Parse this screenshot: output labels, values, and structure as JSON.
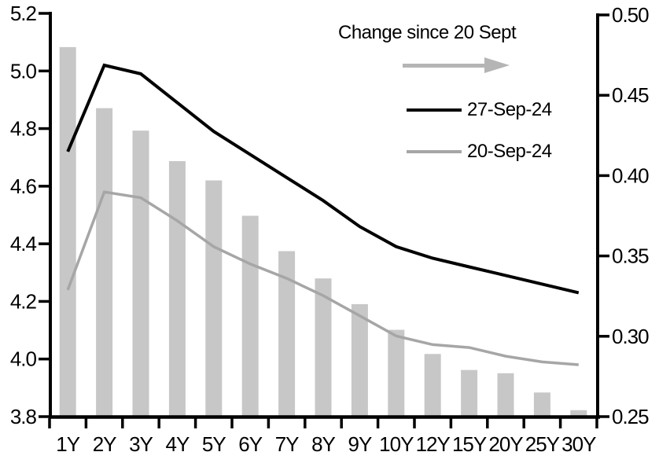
{
  "chart_data": {
    "type": "bar",
    "subtype": "combo-bar-line",
    "title": "",
    "categories": [
      "1Y",
      "2Y",
      "3Y",
      "4Y",
      "5Y",
      "6Y",
      "7Y",
      "8Y",
      "9Y",
      "10Y",
      "12Y",
      "15Y",
      "20Y",
      "25Y",
      "30Y"
    ],
    "series": [
      {
        "name": "Change since 20 Sept",
        "type": "bar",
        "axis": "right",
        "color": "#c7c7c7",
        "values": [
          0.48,
          0.442,
          0.428,
          0.409,
          0.397,
          0.375,
          0.353,
          0.336,
          0.32,
          0.304,
          0.289,
          0.279,
          0.277,
          0.265,
          0.254
        ]
      },
      {
        "name": "27-Sep-24",
        "type": "line",
        "axis": "left",
        "color": "#000000",
        "values": [
          4.72,
          5.02,
          4.99,
          4.89,
          4.79,
          4.71,
          4.63,
          4.55,
          4.46,
          4.39,
          4.35,
          4.32,
          4.29,
          4.26,
          4.23
        ]
      },
      {
        "name": "20-Sep-24",
        "type": "line",
        "axis": "left",
        "color": "#a6a6a6",
        "values": [
          4.24,
          4.58,
          4.56,
          4.48,
          4.39,
          4.33,
          4.28,
          4.22,
          4.15,
          4.08,
          4.05,
          4.04,
          4.01,
          3.99,
          3.98
        ]
      }
    ],
    "left_axis": {
      "min": 3.8,
      "max": 5.2,
      "step": 0.2,
      "ticks": [
        {
          "label": "5.2",
          "v": 5.2
        },
        {
          "label": "5.0",
          "v": 5.0
        },
        {
          "label": "4.8",
          "v": 4.8
        },
        {
          "label": "4.6",
          "v": 4.6
        },
        {
          "label": "4.4",
          "v": 4.4
        },
        {
          "label": "4.2",
          "v": 4.2
        },
        {
          "label": "4.0",
          "v": 4.0
        },
        {
          "label": "3.8",
          "v": 3.8
        }
      ]
    },
    "right_axis": {
      "min": 0.25,
      "max": 0.5,
      "step": 0.05,
      "ticks": [
        {
          "label": "0.50",
          "v": 0.5
        },
        {
          "label": "0.45",
          "v": 0.45
        },
        {
          "label": "0.40",
          "v": 0.4
        },
        {
          "label": "0.35",
          "v": 0.35
        },
        {
          "label": "0.30",
          "v": 0.3
        },
        {
          "label": "0.25",
          "v": 0.25
        }
      ]
    },
    "grid": false,
    "legend_position": "top-right-inside",
    "legend": {
      "title": "Change since 20 Sept",
      "arrow": {
        "icon": "right-arrow",
        "color": "#b5b5b5"
      },
      "items": [
        {
          "label": "27-Sep-24",
          "color": "#000000"
        },
        {
          "label": "20-Sep-24",
          "color": "#a6a6a6"
        }
      ]
    }
  }
}
